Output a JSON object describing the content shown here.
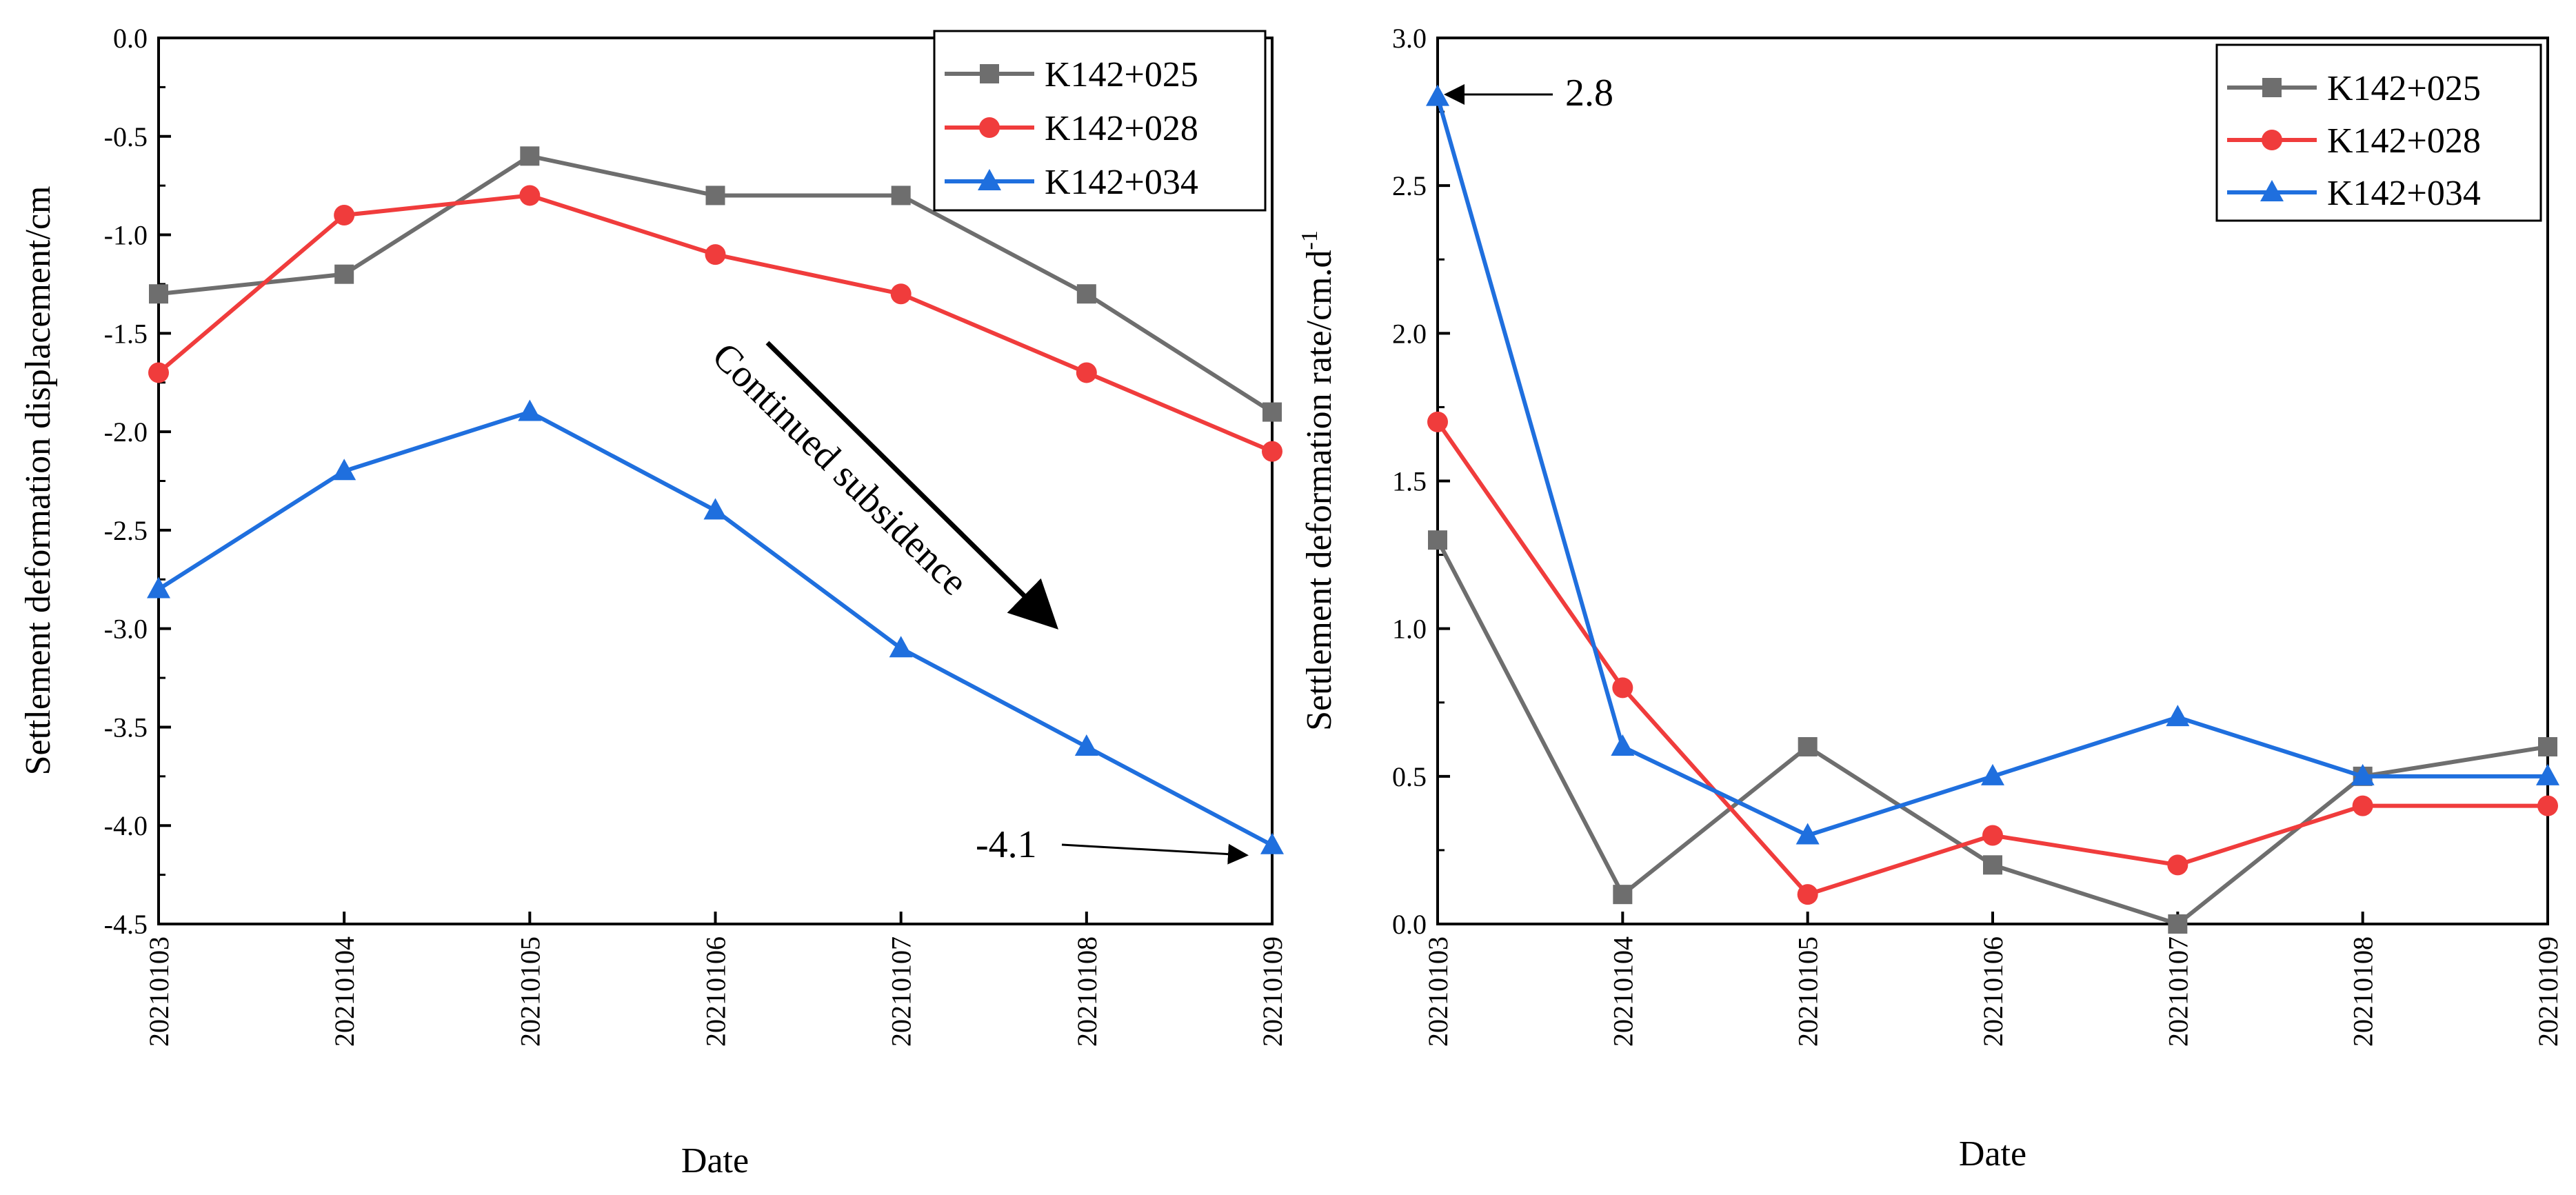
{
  "chart_data": [
    {
      "type": "line",
      "categories": [
        "20210103",
        "20210104",
        "20210105",
        "20210106",
        "20210107",
        "20210108",
        "20210109"
      ],
      "series": [
        {
          "name": "K142+025",
          "values": [
            -1.3,
            -1.2,
            -0.6,
            -0.8,
            -0.8,
            -1.3,
            -1.9
          ]
        },
        {
          "name": "K142+028",
          "values": [
            -1.7,
            -0.9,
            -0.8,
            -1.1,
            -1.3,
            -1.7,
            -2.1
          ]
        },
        {
          "name": "K142+034",
          "values": [
            -2.8,
            -2.2,
            -1.9,
            -2.4,
            -3.1,
            -3.6,
            -4.1
          ]
        }
      ],
      "xlabel": "Date",
      "ylabel": "Settlement deformation displacement/cm",
      "ylim": [
        -4.5,
        0.0
      ],
      "yticks": [
        "0.0",
        "-0.5",
        "-1.0",
        "-1.5",
        "-2.0",
        "-2.5",
        "-3.0",
        "-3.5",
        "-4.0",
        "-4.5"
      ],
      "legend_position": "top-right",
      "grid": false,
      "annotations": [
        {
          "text": "Continued subsidence"
        },
        {
          "text": "-4.1"
        }
      ]
    },
    {
      "type": "line",
      "categories": [
        "20210103",
        "20210104",
        "20210105",
        "20210106",
        "20210107",
        "20210108",
        "20210109"
      ],
      "series": [
        {
          "name": "K142+025",
          "values": [
            1.3,
            0.1,
            0.6,
            0.2,
            0.0,
            0.5,
            0.6
          ]
        },
        {
          "name": "K142+028",
          "values": [
            1.7,
            0.8,
            0.1,
            0.3,
            0.2,
            0.4,
            0.4
          ]
        },
        {
          "name": "K142+034",
          "values": [
            2.8,
            0.6,
            0.3,
            0.5,
            0.7,
            0.5,
            0.5
          ]
        }
      ],
      "xlabel": "Date",
      "ylabel": "Settlement deformation rate/cm.d",
      "ylabel_superscript": "-1",
      "ylim": [
        0.0,
        3.0
      ],
      "yticks": [
        "0.0",
        "0.5",
        "1.0",
        "1.5",
        "2.0",
        "2.5",
        "3.0"
      ],
      "legend_position": "top-right",
      "grid": false,
      "annotations": [
        {
          "text": "2.8"
        }
      ]
    }
  ],
  "colors": {
    "K142+025": "#6e6e6e",
    "K142+028": "#f03c3c",
    "K142+034": "#1f6fde"
  },
  "markers": {
    "K142+025": "square",
    "K142+028": "circle",
    "K142+034": "triangle"
  }
}
